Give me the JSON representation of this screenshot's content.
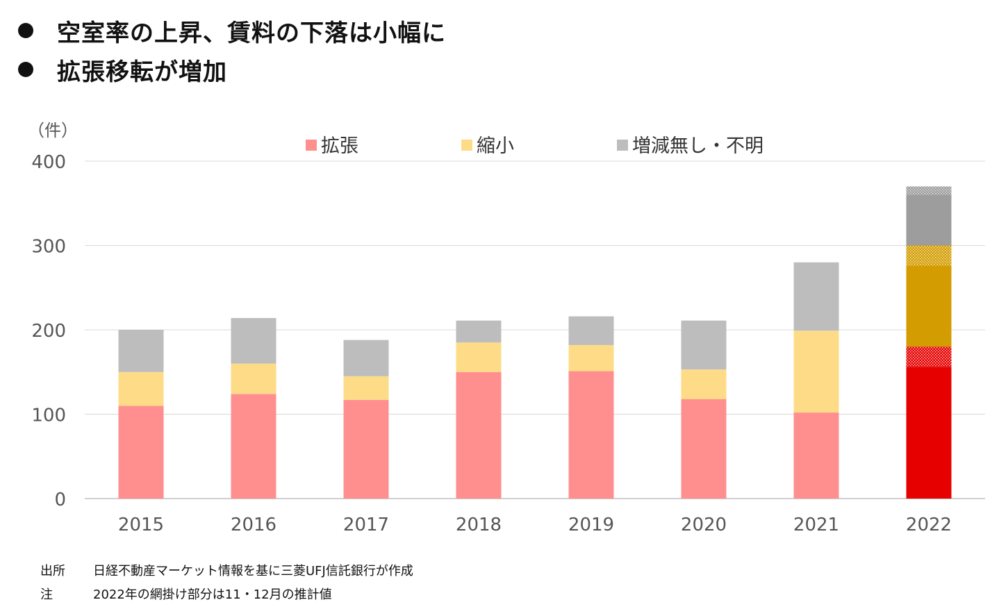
{
  "bullets": [
    "空室率の上昇、賃料の下落は小幅に",
    "拡張移転が増加"
  ],
  "chart_data": {
    "type": "bar",
    "stacked": true,
    "unit_label": "（件）",
    "categories": [
      "2015",
      "2016",
      "2017",
      "2018",
      "2019",
      "2020",
      "2021",
      "2022"
    ],
    "series": [
      {
        "name": "拡張",
        "color": "#ff8f8f",
        "values": [
          110,
          124,
          117,
          150,
          151,
          118,
          102,
          180
        ]
      },
      {
        "name": "縮小",
        "color": "#fedc87",
        "values": [
          40,
          36,
          28,
          35,
          31,
          35,
          97,
          120
        ]
      },
      {
        "name": "増減無し・不明",
        "color": "#bdbdbd",
        "values": [
          50,
          54,
          43,
          26,
          34,
          58,
          81,
          70
        ]
      }
    ],
    "highlight": {
      "category": "2022",
      "colors": [
        "#e60000",
        "#d39c00",
        "#9d9d9d"
      ],
      "hatched_top_values": [
        24,
        24,
        10
      ]
    },
    "ylim": [
      0,
      400
    ],
    "yticks": [
      0,
      100,
      200,
      300,
      400
    ],
    "legend_position": "top",
    "grid": true
  },
  "notes": {
    "source_label": "出所",
    "source_text": "日経不動産マーケット情報を基に三菱UFJ信託銀行が作成",
    "note_label": "注",
    "note_text": "2022年の網掛け部分は11・12月の推計値"
  }
}
